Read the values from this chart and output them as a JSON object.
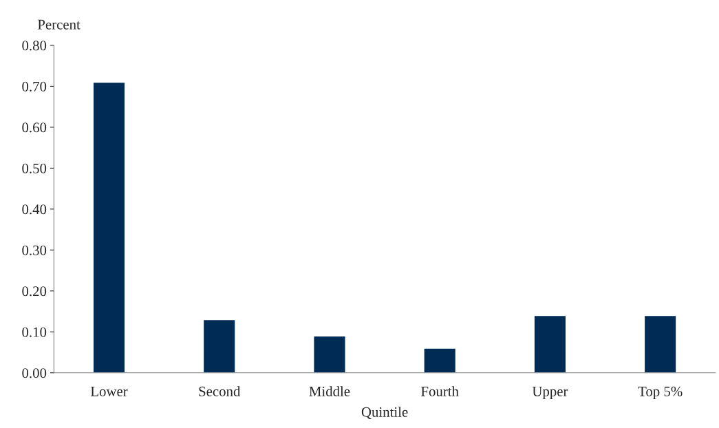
{
  "chart_data": {
    "type": "bar",
    "ylabel": "Percent",
    "xlabel": "Quintile",
    "categories": [
      "Lower",
      "Second",
      "Middle",
      "Fourth",
      "Upper",
      "Top 5%"
    ],
    "values": [
      0.71,
      0.13,
      0.09,
      0.06,
      0.14,
      0.14
    ],
    "color": "#002b55",
    "ylim": [
      0,
      0.8
    ],
    "yticks": [
      {
        "value": 0,
        "label": "0.00"
      },
      {
        "value": 0.1,
        "label": "0.10"
      },
      {
        "value": 0.2,
        "label": "0.20"
      },
      {
        "value": 0.3,
        "label": "0.30"
      },
      {
        "value": 0.4,
        "label": "0.40"
      },
      {
        "value": 0.5,
        "label": "0.50"
      },
      {
        "value": 0.6,
        "label": "0.60"
      },
      {
        "value": 0.7,
        "label": "0.70"
      },
      {
        "value": 0.8,
        "label": "0.80"
      }
    ],
    "grid": false,
    "legend": false
  }
}
